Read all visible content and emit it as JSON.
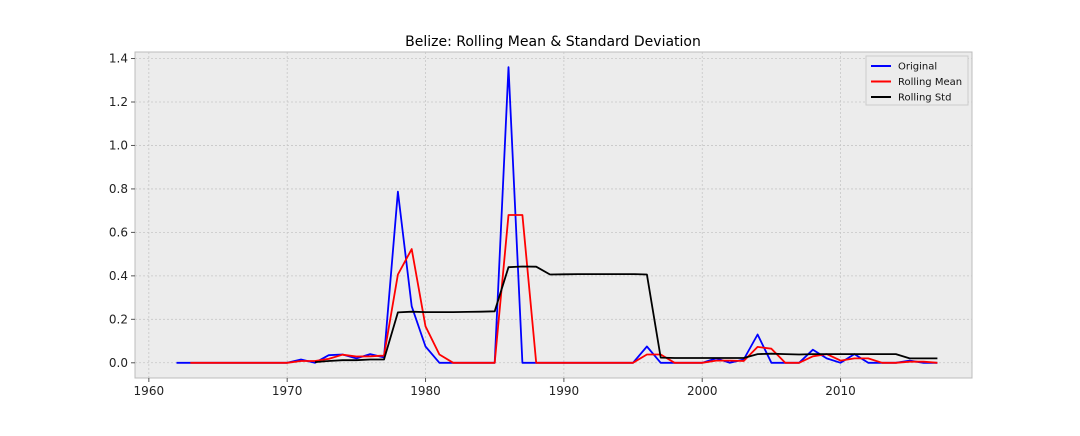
{
  "chart_data": {
    "type": "line",
    "title": "Belize: Rolling Mean & Standard Deviation",
    "xlabel": "",
    "ylabel": "",
    "xlim": [
      1959,
      2019.5
    ],
    "ylim": [
      -0.07,
      1.43
    ],
    "xticks": [
      1960,
      1970,
      1980,
      1990,
      2000,
      2010
    ],
    "xtick_labels": [
      "1960",
      "1970",
      "1980",
      "1990",
      "2000",
      "2010"
    ],
    "yticks": [
      0.0,
      0.2,
      0.4,
      0.6,
      0.8,
      1.0,
      1.2,
      1.4
    ],
    "ytick_labels": [
      "0.0",
      "0.2",
      "0.4",
      "0.6",
      "0.8",
      "1.0",
      "1.2",
      "1.4"
    ],
    "grid": true,
    "legend_position": "top-right",
    "background": "#ececec",
    "series": [
      {
        "name": "Original",
        "color": "#0000ff",
        "x": [
          1962,
          1963,
          1964,
          1965,
          1966,
          1967,
          1968,
          1969,
          1970,
          1971,
          1972,
          1973,
          1974,
          1975,
          1976,
          1977,
          1978,
          1979,
          1980,
          1981,
          1982,
          1983,
          1984,
          1985,
          1986,
          1987,
          1988,
          1989,
          1990,
          1991,
          1992,
          1993,
          1994,
          1995,
          1996,
          1997,
          1998,
          1999,
          2000,
          2001,
          2002,
          2003,
          2004,
          2005,
          2006,
          2007,
          2008,
          2009,
          2010,
          2011,
          2012,
          2013,
          2014,
          2015,
          2016,
          2017
        ],
        "y": [
          0,
          0,
          0,
          0,
          0,
          0,
          0,
          0,
          0,
          0.015,
          0,
          0.035,
          0.038,
          0.02,
          0.04,
          0.025,
          0.787,
          0.26,
          0.075,
          0,
          0,
          0,
          0,
          0,
          1.36,
          0,
          0,
          0,
          0,
          0,
          0,
          0,
          0,
          0,
          0.075,
          0,
          0,
          0,
          0,
          0.02,
          0,
          0.015,
          0.13,
          0,
          0,
          0,
          0.06,
          0.02,
          0,
          0.04,
          0,
          0,
          0,
          0.01,
          0,
          0
        ]
      },
      {
        "name": "Rolling Mean",
        "color": "#ff0000",
        "x": [
          1963,
          1964,
          1965,
          1966,
          1967,
          1968,
          1969,
          1970,
          1971,
          1972,
          1973,
          1974,
          1975,
          1976,
          1977,
          1978,
          1979,
          1980,
          1981,
          1982,
          1983,
          1984,
          1985,
          1986,
          1987,
          1988,
          1989,
          1990,
          1991,
          1992,
          1993,
          1994,
          1995,
          1996,
          1997,
          1998,
          1999,
          2000,
          2001,
          2002,
          2003,
          2004,
          2005,
          2006,
          2007,
          2008,
          2009,
          2010,
          2011,
          2012,
          2013,
          2014,
          2015,
          2016,
          2017
        ],
        "y": [
          0,
          0,
          0,
          0,
          0,
          0,
          0,
          0,
          0.008,
          0.008,
          0.018,
          0.037,
          0.029,
          0.03,
          0.033,
          0.406,
          0.523,
          0.168,
          0.038,
          0,
          0,
          0,
          0,
          0.68,
          0.68,
          0,
          0,
          0,
          0,
          0,
          0,
          0,
          0,
          0.038,
          0.038,
          0,
          0,
          0,
          0.01,
          0.01,
          0.008,
          0.073,
          0.065,
          0,
          0,
          0.03,
          0.04,
          0.01,
          0.02,
          0.02,
          0,
          0,
          0.005,
          0.005,
          0
        ]
      },
      {
        "name": "Rolling Std",
        "color": "#000000",
        "x": [
          1972,
          1973,
          1974,
          1975,
          1976,
          1977,
          1978,
          1979,
          1980,
          1981,
          1982,
          1983,
          1984,
          1985,
          1986,
          1987,
          1988,
          1989,
          1990,
          1991,
          1992,
          1993,
          1994,
          1995,
          1996,
          1997,
          1998,
          1999,
          2000,
          2001,
          2002,
          2003,
          2004,
          2005,
          2006,
          2007,
          2008,
          2009,
          2010,
          2011,
          2012,
          2013,
          2014,
          2015,
          2016,
          2017
        ],
        "y": [
          0.003,
          0.008,
          0.012,
          0.012,
          0.015,
          0.015,
          0.232,
          0.235,
          0.233,
          0.233,
          0.233,
          0.234,
          0.235,
          0.237,
          0.44,
          0.443,
          0.442,
          0.406,
          0.407,
          0.408,
          0.408,
          0.408,
          0.408,
          0.408,
          0.406,
          0.024,
          0.022,
          0.022,
          0.022,
          0.022,
          0.022,
          0.022,
          0.04,
          0.042,
          0.04,
          0.038,
          0.04,
          0.04,
          0.04,
          0.04,
          0.04,
          0.04,
          0.04,
          0.02,
          0.02,
          0.02
        ]
      }
    ]
  }
}
